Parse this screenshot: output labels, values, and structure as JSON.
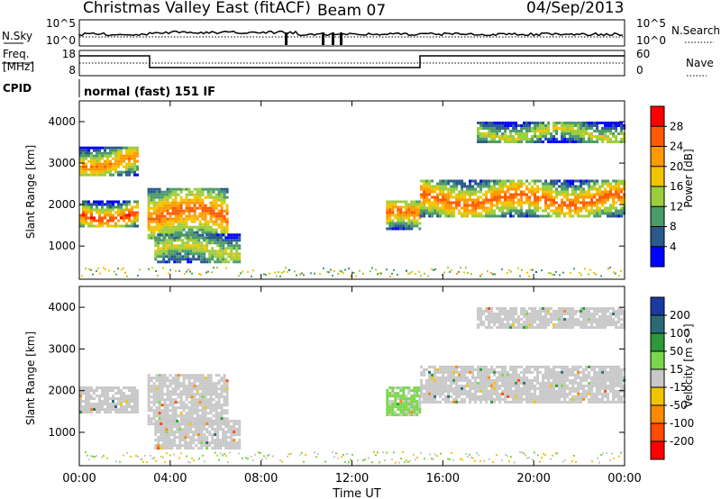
{
  "header": {
    "title": "Christmas Valley East (fitACF)",
    "beam": "Beam 07",
    "date": "04/Sep/2013"
  },
  "strip_labels": {
    "nsky": "N.Sky",
    "nsky_ticks": [
      "10^5",
      "10^0"
    ],
    "nsearch": "N.Search",
    "nsearch_ticks": [
      "10^5",
      "10^0"
    ],
    "freq": "Freq.",
    "freq_unit": "[MHz]",
    "freq_ticks": [
      "18",
      "8"
    ],
    "nave": "Nave",
    "nave_ticks": [
      "60",
      "0"
    ],
    "cpid": "CPID",
    "cpid_value": "normal (fast) 151 IF"
  },
  "panels": {
    "ylabel": "Slant Range [km]",
    "y_ticks": [
      "4000",
      "3000",
      "2000",
      "1000"
    ],
    "x_ticks": [
      "00:00",
      "04:00",
      "08:00",
      "12:00",
      "16:00",
      "20:00",
      "00:00"
    ],
    "xlabel": "Time UT"
  },
  "power_scale": {
    "label": "Power [dB]",
    "ticks": [
      "28",
      "24",
      "20",
      "16",
      "12",
      "8",
      "4"
    ],
    "colors": [
      "#ff0000",
      "#ff5a00",
      "#ff9a00",
      "#f2c400",
      "#9ccd3c",
      "#4a9a6a",
      "#2a5a8a",
      "#0000ff"
    ]
  },
  "velocity_scale": {
    "label": "Velocity [m s⁻¹]",
    "ticks": [
      "200",
      "100",
      "50",
      "15",
      "-15",
      "-50",
      "-100",
      "-200"
    ],
    "colors": [
      "#1a3aa0",
      "#2a6a78",
      "#2a9a3a",
      "#7ad64a",
      "#c8c8c8",
      "#f2c400",
      "#ff8a00",
      "#ff4a00",
      "#ff0000"
    ]
  },
  "chart_data": [
    {
      "type": "heatmap",
      "title": "Christmas Valley East (fitACF)",
      "subtitle": "Beam 07",
      "xlabel": "Time UT",
      "ylabel": "Slant Range [km]",
      "colorbar_label": "Power [dB]",
      "x_ticks": [
        "00:00",
        "04:00",
        "08:00",
        "12:00",
        "16:00",
        "20:00",
        "00:00"
      ],
      "xlim": [
        0,
        24
      ],
      "ylim": [
        200,
        4500
      ],
      "clim": [
        0,
        30
      ],
      "echo_regions": [
        {
          "t": [
            0,
            2.5
          ],
          "range": [
            1500,
            2100
          ],
          "peak_db": 28
        },
        {
          "t": [
            0,
            2.5
          ],
          "range": [
            2700,
            3400
          ],
          "peak_db": 24
        },
        {
          "t": [
            3,
            6.5
          ],
          "range": [
            1200,
            2400
          ],
          "peak_db": 26
        },
        {
          "t": [
            3.3,
            7
          ],
          "range": [
            600,
            1300
          ],
          "peak_db": 16
        },
        {
          "t": [
            13.5,
            15
          ],
          "range": [
            1400,
            2100
          ],
          "peak_db": 26
        },
        {
          "t": [
            15,
            24
          ],
          "range": [
            1700,
            2600
          ],
          "peak_db": 26
        },
        {
          "t": [
            17.5,
            24
          ],
          "range": [
            3500,
            4000
          ],
          "peak_db": 16
        }
      ]
    },
    {
      "type": "heatmap",
      "xlabel": "Time UT",
      "ylabel": "Slant Range [km]",
      "colorbar_label": "Velocity [m s⁻¹]",
      "x_ticks": [
        "00:00",
        "04:00",
        "08:00",
        "12:00",
        "16:00",
        "20:00",
        "00:00"
      ],
      "xlim": [
        0,
        24
      ],
      "ylim": [
        200,
        4500
      ],
      "clim": [
        -200,
        200
      ],
      "echo_regions": [
        {
          "t": [
            0,
            2.5
          ],
          "range": [
            1500,
            2100
          ],
          "velocity": 0
        },
        {
          "t": [
            3,
            6.5
          ],
          "range": [
            1200,
            2400
          ],
          "velocity": 0
        },
        {
          "t": [
            3.3,
            7
          ],
          "range": [
            600,
            1300
          ],
          "velocity": 0
        },
        {
          "t": [
            13.5,
            15
          ],
          "range": [
            1400,
            2100
          ],
          "velocity": 30
        },
        {
          "t": [
            15,
            24
          ],
          "range": [
            1700,
            2600
          ],
          "velocity": 0
        },
        {
          "t": [
            17.5,
            24
          ],
          "range": [
            3500,
            4000
          ],
          "velocity": 0
        }
      ]
    }
  ]
}
